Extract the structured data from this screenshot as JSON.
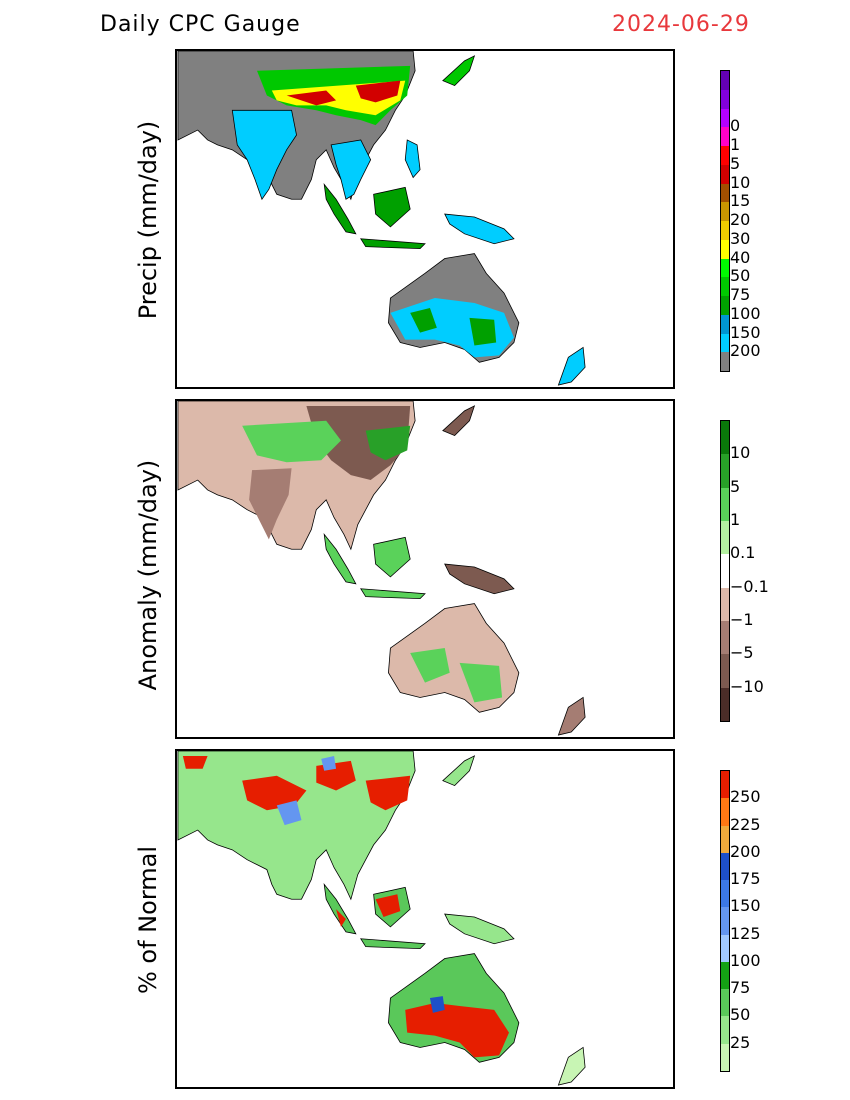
{
  "header": {
    "title": "Daily CPC Gauge",
    "date": "2024-06-29"
  },
  "panels": [
    {
      "ylabel": "Precip (mm/day)",
      "colorbar": {
        "colors": [
          "#808080",
          "#00cdff",
          "#0096d2",
          "#00a000",
          "#00c800",
          "#00fa00",
          "#ffff00",
          "#f0cc00",
          "#c89600",
          "#a05000",
          "#d20000",
          "#ff0000",
          "#ff00c8",
          "#b400ff",
          "#8200dc",
          "#6400b4"
        ],
        "labels": [
          "0",
          "1",
          "5",
          "10",
          "15",
          "20",
          "30",
          "40",
          "50",
          "75",
          "100",
          "150",
          "200"
        ]
      }
    },
    {
      "ylabel": "Anomaly (mm/day)",
      "colorbar": {
        "colors": [
          "#4b2d28",
          "#7d5a50",
          "#a57d73",
          "#dcb9aa",
          "#ffffff",
          "#b4f0a0",
          "#5ad25a",
          "#28a028",
          "#0a780a"
        ],
        "labels": [
          "10",
          "5",
          "1",
          "0.1",
          "−0.1",
          "−1",
          "−5",
          "−10"
        ]
      }
    },
    {
      "ylabel": "% of Normal",
      "colorbar": {
        "colors": [
          "#c8f5b4",
          "#96e68c",
          "#5ac85a",
          "#14a014",
          "#a0c8ff",
          "#6496f0",
          "#3c78e6",
          "#1e50c8",
          "#f0aa3c",
          "#ff7814",
          "#e61e00"
        ],
        "labels": [
          "250",
          "225",
          "200",
          "175",
          "150",
          "125",
          "100",
          "75",
          "50",
          "25"
        ]
      }
    }
  ]
}
